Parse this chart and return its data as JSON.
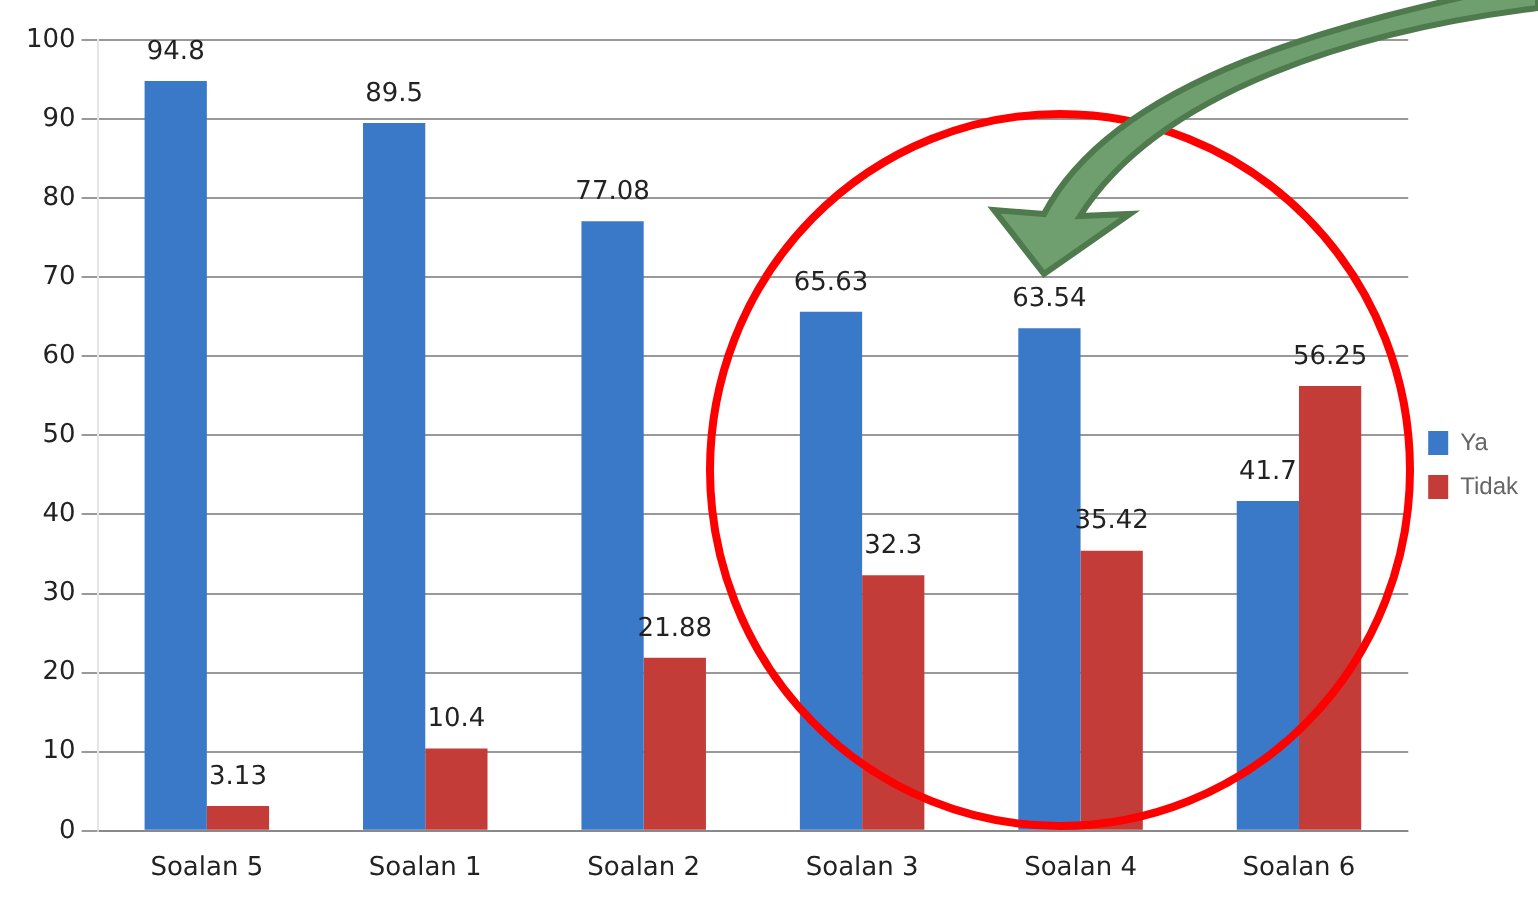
{
  "chart_data": {
    "type": "bar",
    "categories": [
      "Soalan 5",
      "Soalan 1",
      "Soalan 2",
      "Soalan 3",
      "Soalan 4",
      "Soalan 6"
    ],
    "series": [
      {
        "name": "Ya",
        "color": "#3a78c8",
        "values": [
          94.8,
          89.5,
          77.08,
          65.63,
          63.54,
          41.7
        ]
      },
      {
        "name": "Tidak",
        "color": "#c43c38",
        "values": [
          3.13,
          10.4,
          21.88,
          32.3,
          35.42,
          56.25
        ]
      }
    ],
    "ylim": [
      0,
      100
    ],
    "yticks": [
      0,
      10,
      20,
      30,
      40,
      50,
      60,
      70,
      80,
      90,
      100
    ],
    "grid": "y",
    "legend": "right",
    "data_labels": true
  }
}
